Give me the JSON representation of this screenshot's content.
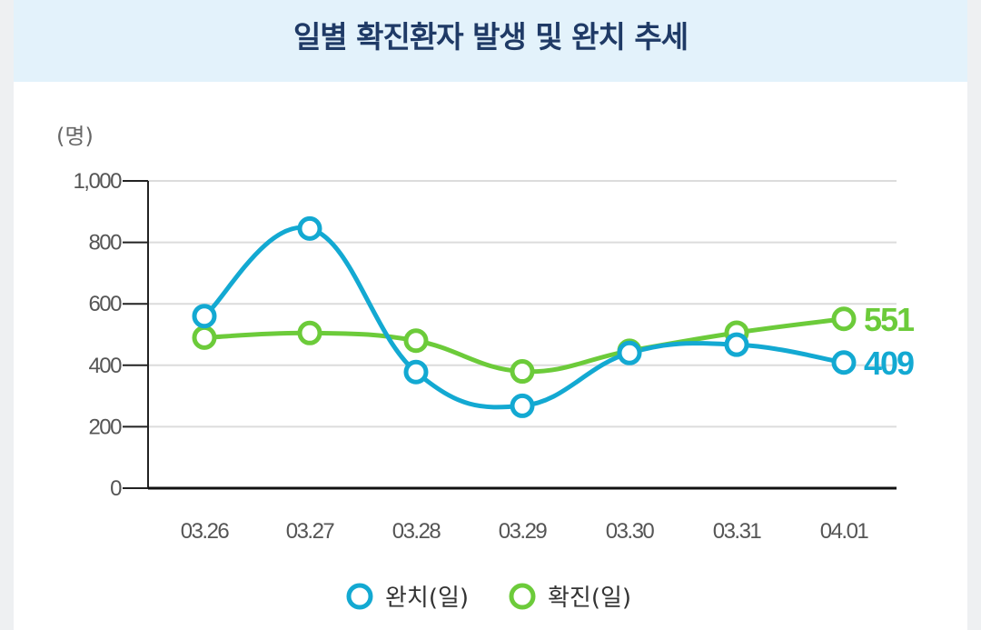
{
  "header": {
    "title": "일별 확진환자 발생 및 완치 추세"
  },
  "chart_data": {
    "type": "line",
    "title": "일별 확진환자 발생 및 완치 추세",
    "ylabel": "(명)",
    "xlabel": "",
    "ylim": [
      0,
      1000
    ],
    "y_ticks": [
      "0",
      "200",
      "400",
      "600",
      "800",
      "1,000"
    ],
    "y_tick_values": [
      0,
      200,
      400,
      600,
      800,
      1000
    ],
    "categories": [
      "03.26",
      "03.27",
      "03.28",
      "03.29",
      "03.30",
      "03.31",
      "04.01"
    ],
    "series": [
      {
        "name": "완치(일)",
        "color": "#13a9d2",
        "values": [
          560,
          845,
          378,
          268,
          440,
          467,
          409
        ],
        "end_label": "409"
      },
      {
        "name": "확진(일)",
        "color": "#6ccb3a",
        "values": [
          490,
          505,
          480,
          380,
          447,
          506,
          551
        ],
        "end_label": "551"
      }
    ],
    "grid": true,
    "legend": "bottom-center"
  }
}
